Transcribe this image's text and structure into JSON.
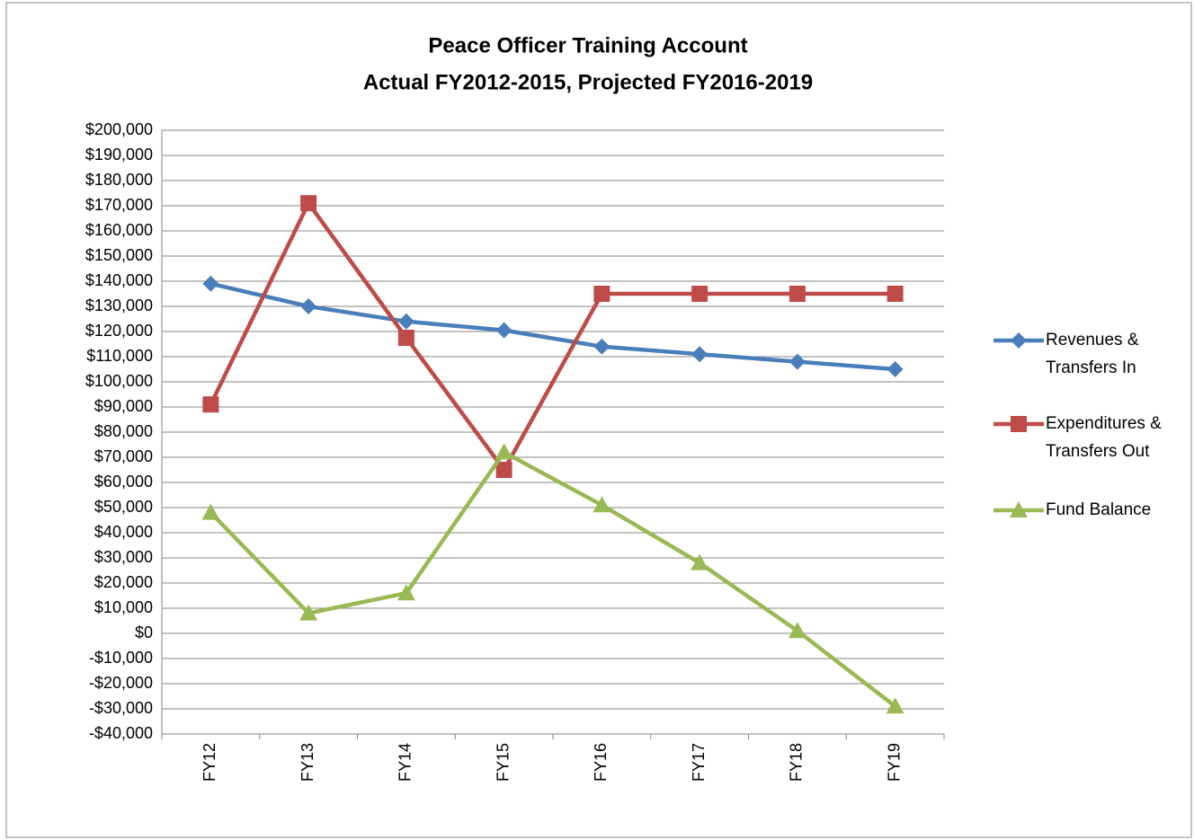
{
  "chart_data": {
    "type": "line",
    "title": "Peace Officer Training Account",
    "subtitle": "Actual FY2012-2015, Projected FY2016-2019",
    "categories": [
      "FY12",
      "FY13",
      "FY14",
      "FY15",
      "FY16",
      "FY17",
      "FY18",
      "FY19"
    ],
    "series": [
      {
        "name": "Revenues & Transfers In",
        "color": "#4a7ebb",
        "marker": "diamond",
        "values": [
          139000,
          130000,
          124000,
          120500,
          114000,
          111000,
          108000,
          105000
        ]
      },
      {
        "name": "Expenditures & Transfers Out",
        "color": "#be4b48",
        "marker": "square",
        "values": [
          91000,
          171000,
          117500,
          65000,
          135000,
          135000,
          135000,
          135000
        ]
      },
      {
        "name": "Fund Balance",
        "color": "#98b954",
        "marker": "triangle",
        "values": [
          48000,
          8000,
          16000,
          72000,
          51000,
          28000,
          1000,
          -29000
        ]
      }
    ],
    "ylim": [
      -40000,
      200000
    ],
    "yticks": [
      {
        "value": -40000,
        "label": "-$40,000"
      },
      {
        "value": -30000,
        "label": "-$30,000"
      },
      {
        "value": -20000,
        "label": "-$20,000"
      },
      {
        "value": -10000,
        "label": "-$10,000"
      },
      {
        "value": 0,
        "label": "$0"
      },
      {
        "value": 10000,
        "label": "$10,000"
      },
      {
        "value": 20000,
        "label": "$20,000"
      },
      {
        "value": 30000,
        "label": "$30,000"
      },
      {
        "value": 40000,
        "label": "$40,000"
      },
      {
        "value": 50000,
        "label": "$50,000"
      },
      {
        "value": 60000,
        "label": "$60,000"
      },
      {
        "value": 70000,
        "label": "$70,000"
      },
      {
        "value": 80000,
        "label": "$80,000"
      },
      {
        "value": 90000,
        "label": "$90,000"
      },
      {
        "value": 100000,
        "label": "$100,000"
      },
      {
        "value": 110000,
        "label": "$110,000"
      },
      {
        "value": 120000,
        "label": "$120,000"
      },
      {
        "value": 130000,
        "label": "$130,000"
      },
      {
        "value": 140000,
        "label": "$140,000"
      },
      {
        "value": 150000,
        "label": "$150,000"
      },
      {
        "value": 160000,
        "label": "$160,000"
      },
      {
        "value": 170000,
        "label": "$170,000"
      },
      {
        "value": 180000,
        "label": "$180,000"
      },
      {
        "value": 190000,
        "label": "$190,000"
      },
      {
        "value": 200000,
        "label": "$200,000"
      }
    ],
    "grid": true,
    "legend": "right"
  }
}
